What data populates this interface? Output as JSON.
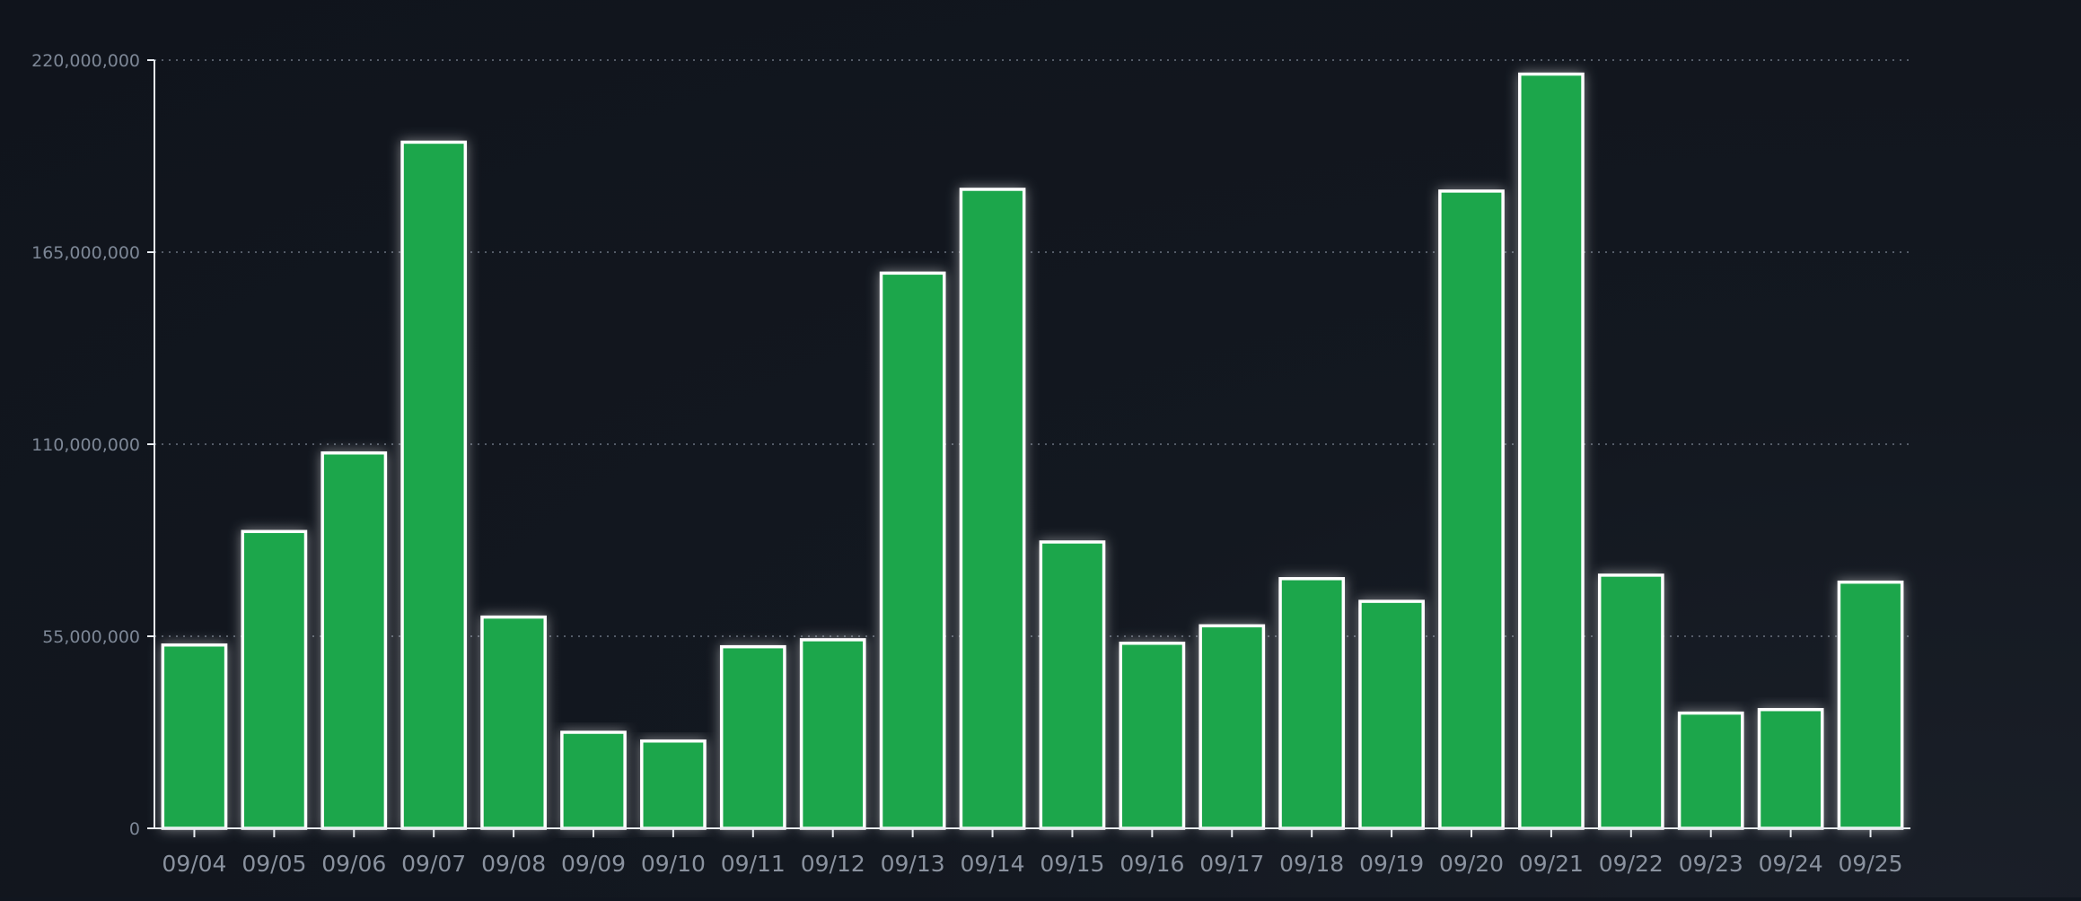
{
  "chart_data": {
    "type": "bar",
    "title": "",
    "xlabel": "",
    "ylabel": "",
    "categories": [
      "09/04",
      "09/05",
      "09/06",
      "09/07",
      "09/08",
      "09/09",
      "09/10",
      "09/11",
      "09/12",
      "09/13",
      "09/14",
      "09/15",
      "09/16",
      "09/17",
      "09/18",
      "09/19",
      "09/20",
      "09/21",
      "09/22",
      "09/23",
      "09/24",
      "09/25"
    ],
    "values": [
      52500000,
      85000000,
      107500000,
      196500000,
      60500000,
      27500000,
      25000000,
      52000000,
      54000000,
      159000000,
      183000000,
      82000000,
      53000000,
      58000000,
      71500000,
      65000000,
      182500000,
      216000000,
      72500000,
      33000000,
      34000000,
      70500000
    ],
    "ylim": [
      0,
      220000000
    ],
    "yticks": [
      0,
      55000000,
      110000000,
      165000000,
      220000000
    ],
    "ytick_labels": [
      "0",
      "55,000,000",
      "110,000,000",
      "165,000,000",
      "220,000,000"
    ],
    "grid": true,
    "legend": "none",
    "colors": {
      "bar_fill": "#1aa64b",
      "bar_stroke": "#ffffff",
      "axis": "#e8ecf1",
      "grid": "#6b7380"
    }
  }
}
